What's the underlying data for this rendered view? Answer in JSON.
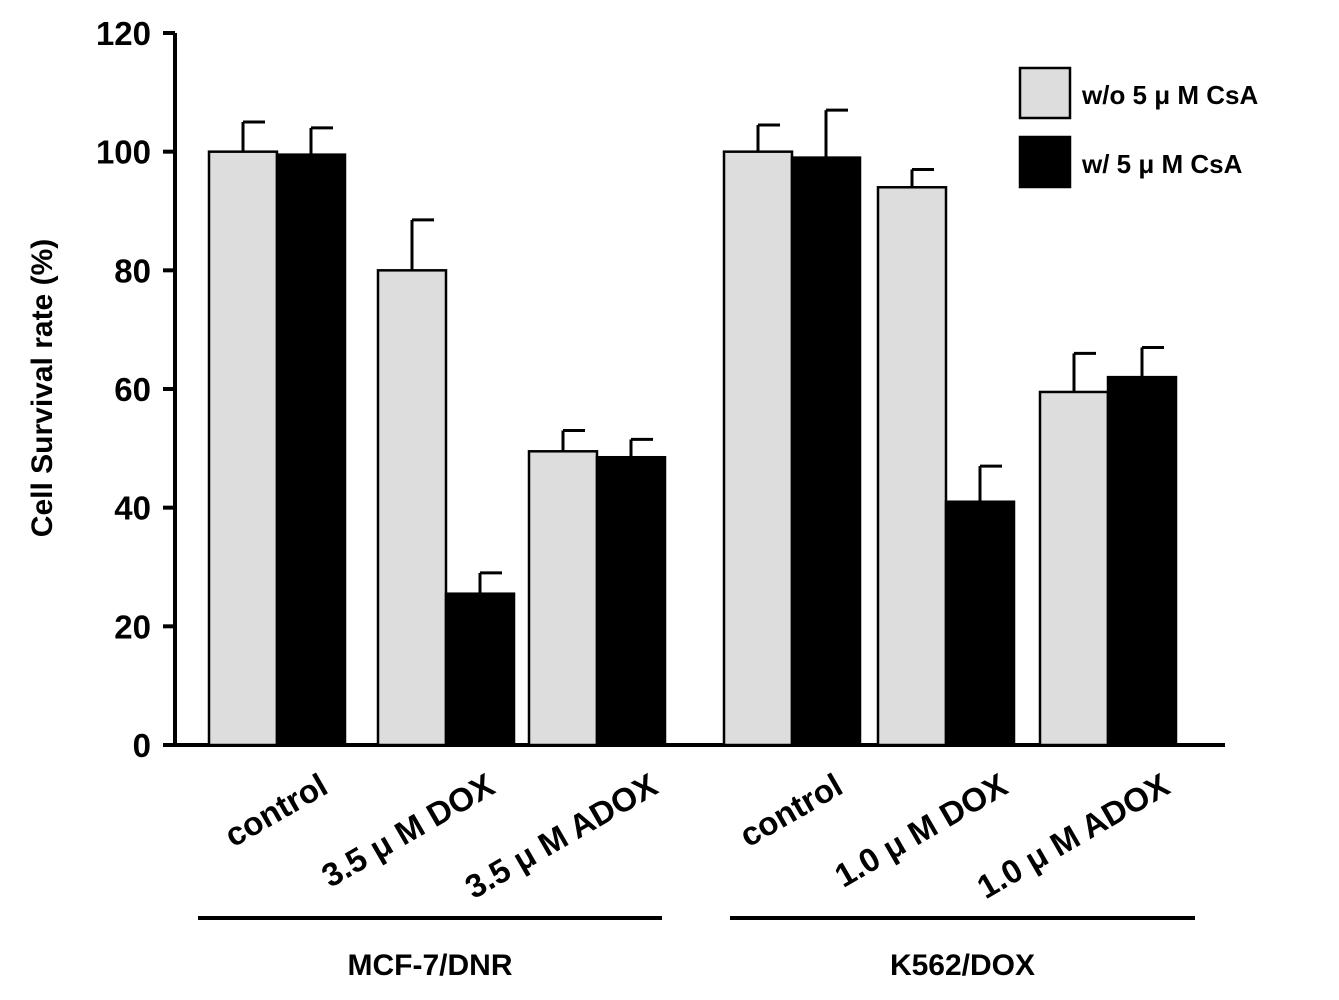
{
  "chart_data": {
    "type": "bar",
    "title": "",
    "xlabel": "",
    "ylabel": "Cell Survival rate (%)",
    "ylim": [
      0,
      120
    ],
    "yticks": [
      "0",
      "20",
      "40",
      "60",
      "80",
      "100",
      "120"
    ],
    "categories": [
      "control",
      "3.5 μ M DOX",
      "3.5 μ M ADOX",
      "control",
      "1.0 μ M DOX",
      "1.0 μ M ADOX"
    ],
    "groups": [
      {
        "label": "MCF-7/DNR",
        "categories": [
          "control",
          "3.5 μ M DOX",
          "3.5 μ M ADOX"
        ]
      },
      {
        "label": "K562/DOX",
        "categories": [
          "control",
          "1.0 μ M DOX",
          "1.0 μ M ADOX"
        ]
      }
    ],
    "series": [
      {
        "name": "w/o 5 μ M CsA",
        "color": "#dddddd",
        "values": [
          100,
          80,
          49.5,
          100,
          94,
          59.5
        ],
        "errors": [
          5,
          8.5,
          3.5,
          4.5,
          3,
          6.5
        ]
      },
      {
        "name": "w/ 5 μ M CsA",
        "color": "#000000",
        "values": [
          99.5,
          25.5,
          48.5,
          99,
          41,
          62
        ],
        "errors": [
          4.5,
          3.5,
          3,
          8,
          6,
          5
        ]
      }
    ],
    "legend": {
      "position": "top-right"
    },
    "grid": false
  }
}
